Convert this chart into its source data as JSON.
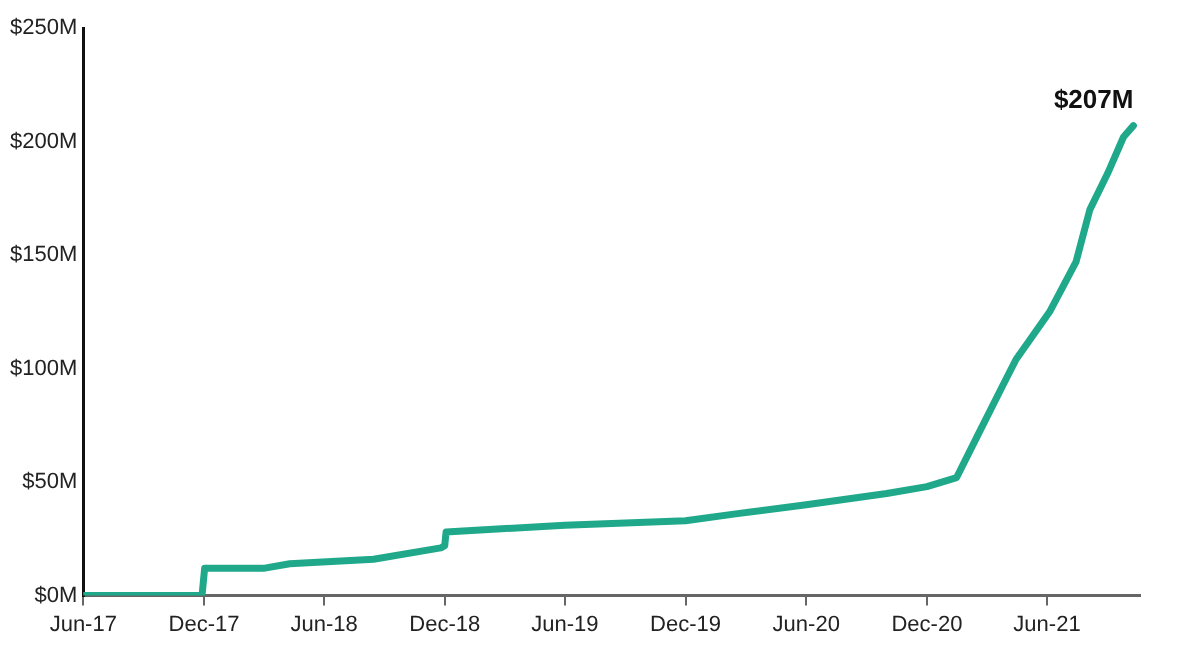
{
  "chart_data": {
    "type": "line",
    "x": [
      "2017-06-01",
      "2017-11-28",
      "2017-12-02",
      "2018-03-01",
      "2018-04-10",
      "2018-08-15",
      "2018-11-25",
      "2018-12-01",
      "2018-12-03",
      "2019-06-01",
      "2019-12-01",
      "2020-02-15",
      "2020-06-01",
      "2020-10-01",
      "2020-12-01",
      "2021-01-15",
      "2021-02-15",
      "2021-03-25",
      "2021-04-15",
      "2021-06-05",
      "2021-07-15",
      "2021-08-05",
      "2021-09-01",
      "2021-09-25",
      "2021-10-10"
    ],
    "series": [
      {
        "color": "#1fa98a",
        "values": [
          0,
          0,
          12,
          12,
          14,
          16,
          21,
          22,
          28,
          31,
          33,
          36,
          40,
          45,
          48,
          52,
          70,
          92,
          104,
          125,
          147,
          170,
          186,
          202,
          207
        ]
      }
    ],
    "xlim": [
      "2017-06-01",
      "2021-10-20"
    ],
    "xticks": [
      {
        "value": "2017-06-01",
        "label": "Jun-17"
      },
      {
        "value": "2017-12-01",
        "label": "Dec-17"
      },
      {
        "value": "2018-06-01",
        "label": "Jun-18"
      },
      {
        "value": "2018-12-01",
        "label": "Dec-18"
      },
      {
        "value": "2019-06-01",
        "label": "Jun-19"
      },
      {
        "value": "2019-12-01",
        "label": "Dec-19"
      },
      {
        "value": "2020-06-01",
        "label": "Jun-20"
      },
      {
        "value": "2020-12-01",
        "label": "Dec-20"
      },
      {
        "value": "2021-06-01",
        "label": "Jun-21"
      }
    ],
    "ylim": [
      0,
      250
    ],
    "yticks": [
      {
        "value": 0,
        "label": "$0M"
      },
      {
        "value": 50,
        "label": "$50M"
      },
      {
        "value": 100,
        "label": "$100M"
      },
      {
        "value": 150,
        "label": "$150M"
      },
      {
        "value": 200,
        "label": "$200M"
      },
      {
        "value": 250,
        "label": "$250M"
      }
    ],
    "annotations": [
      {
        "text": "$207M",
        "x": "2021-10-10",
        "y": 207
      }
    ],
    "grid": false,
    "legend": false,
    "marker": "none",
    "line_style": "solid"
  }
}
